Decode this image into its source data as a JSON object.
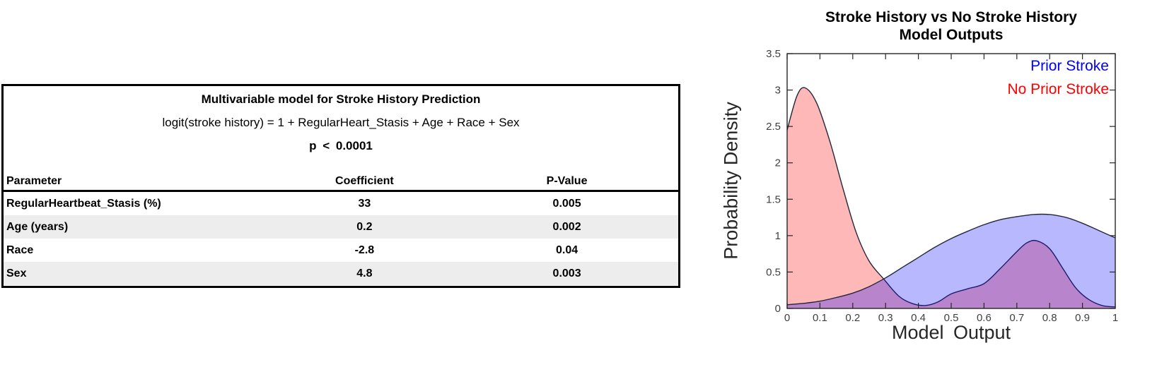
{
  "table": {
    "title": "Multivariable model for Stroke History Prediction",
    "equation": "logit(stroke history) = 1 + RegularHeart_Stasis + Age + Race + Sex",
    "significance": "p < 0.0001",
    "headers": [
      "Parameter",
      "Coefficient",
      "P-Value"
    ],
    "rows": [
      {
        "param": "RegularHeartbeat_Stasis (%)",
        "coefficient": "33",
        "p_value": "0.005"
      },
      {
        "param": "Age (years)",
        "coefficient": "0.2",
        "p_value": "0.002"
      },
      {
        "param": "Race",
        "coefficient": "-2.8",
        "p_value": "0.04"
      },
      {
        "param": "Sex",
        "coefficient": "4.8",
        "p_value": "0.003"
      }
    ]
  },
  "chart_data": {
    "type": "area",
    "title": "Stroke History vs No Stroke History Model Outputs",
    "title_lines": [
      "Stroke History vs No Stroke History",
      "Model Outputs"
    ],
    "xlabel": "Model Output",
    "ylabel": "Probability Density",
    "xlim": [
      0,
      1
    ],
    "ylim": [
      0,
      3.5
    ],
    "grid": false,
    "box": true,
    "legend_position": "inside top-right",
    "x_tick_values": [
      0,
      0.1,
      0.2,
      0.3,
      0.4,
      0.5,
      0.6,
      0.7,
      0.8,
      0.9,
      1
    ],
    "x_tick_labels": [
      "0",
      "0.1",
      "0.2",
      "0.3",
      "0.4",
      "0.5",
      "0.6",
      "0.7",
      "0.8",
      "0.9",
      "1"
    ],
    "y_tick_values": [
      0,
      0.5,
      1,
      1.5,
      2,
      2.5,
      3,
      3.5
    ],
    "y_tick_labels": [
      "0",
      "0.5",
      "1",
      "1.5",
      "2",
      "2.5",
      "3",
      "3.5"
    ],
    "colors": {
      "prior_stroke": "#0000ff",
      "no_prior_stroke": "#ff0000",
      "curve_edge": "#26263a",
      "axis": "#262626",
      "tick_label": "#3f3f3f"
    },
    "series": [
      {
        "name": "Prior Stroke",
        "color": "#0000ff",
        "fill_opacity": 0.28,
        "points": [
          [
            0,
            0.05
          ],
          [
            0.05,
            0.07
          ],
          [
            0.1,
            0.1
          ],
          [
            0.15,
            0.15
          ],
          [
            0.2,
            0.21
          ],
          [
            0.25,
            0.3
          ],
          [
            0.3,
            0.42
          ],
          [
            0.35,
            0.56
          ],
          [
            0.4,
            0.7
          ],
          [
            0.45,
            0.84
          ],
          [
            0.5,
            0.96
          ],
          [
            0.55,
            1.06
          ],
          [
            0.6,
            1.15
          ],
          [
            0.65,
            1.22
          ],
          [
            0.7,
            1.26
          ],
          [
            0.75,
            1.29
          ],
          [
            0.8,
            1.29
          ],
          [
            0.85,
            1.25
          ],
          [
            0.9,
            1.17
          ],
          [
            0.95,
            1.07
          ],
          [
            1,
            0.97
          ]
        ]
      },
      {
        "name": "No Prior Stroke",
        "color": "#ff0000",
        "fill_opacity": 0.28,
        "points": [
          [
            0,
            2.45
          ],
          [
            0.03,
            2.92
          ],
          [
            0.055,
            3.03
          ],
          [
            0.09,
            2.82
          ],
          [
            0.13,
            2.3
          ],
          [
            0.17,
            1.65
          ],
          [
            0.21,
            1.05
          ],
          [
            0.25,
            0.65
          ],
          [
            0.295,
            0.4
          ],
          [
            0.34,
            0.17
          ],
          [
            0.38,
            0.07
          ],
          [
            0.42,
            0.04
          ],
          [
            0.46,
            0.09
          ],
          [
            0.5,
            0.2
          ],
          [
            0.55,
            0.27
          ],
          [
            0.6,
            0.34
          ],
          [
            0.65,
            0.55
          ],
          [
            0.7,
            0.78
          ],
          [
            0.73,
            0.9
          ],
          [
            0.76,
            0.93
          ],
          [
            0.8,
            0.82
          ],
          [
            0.84,
            0.55
          ],
          [
            0.88,
            0.28
          ],
          [
            0.92,
            0.12
          ],
          [
            0.96,
            0.04
          ],
          [
            1,
            0.02
          ]
        ]
      }
    ]
  }
}
